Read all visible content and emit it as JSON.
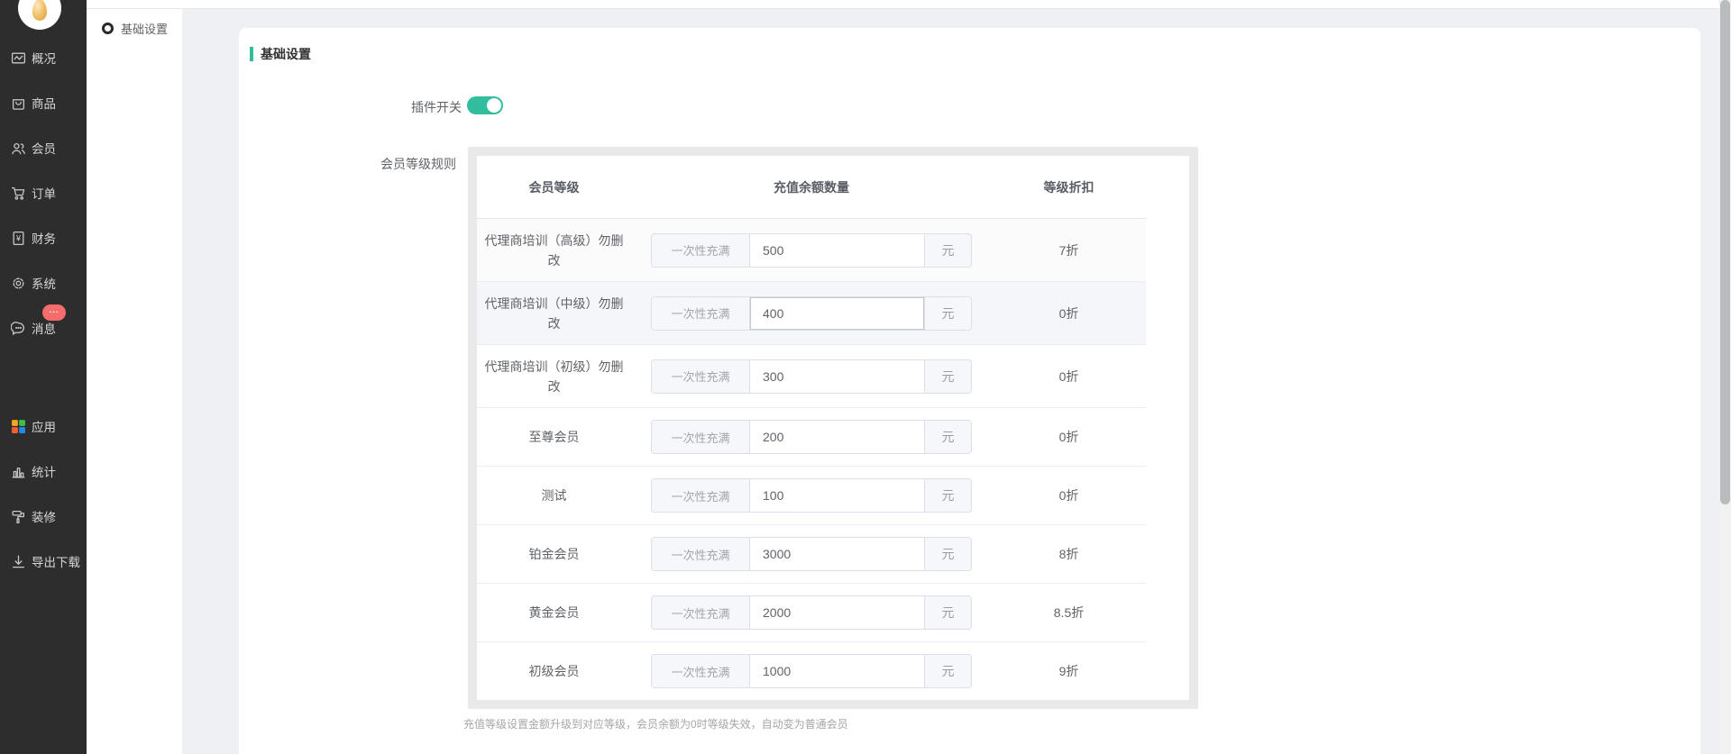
{
  "accent_color": "#30be9e",
  "sidebar": {
    "items": [
      {
        "label": "概况",
        "icon": "overview-icon"
      },
      {
        "label": "商品",
        "icon": "goods-icon"
      },
      {
        "label": "会员",
        "icon": "members-icon"
      },
      {
        "label": "订单",
        "icon": "orders-icon"
      },
      {
        "label": "财务",
        "icon": "finance-icon"
      },
      {
        "label": "系统",
        "icon": "system-icon"
      },
      {
        "label": "消息",
        "icon": "messages-icon",
        "badge": "..."
      }
    ],
    "bottom_items": [
      {
        "label": "应用",
        "icon": "apps-icon"
      },
      {
        "label": "统计",
        "icon": "stats-icon"
      },
      {
        "label": "装修",
        "icon": "decorate-icon"
      },
      {
        "label": "导出下载",
        "icon": "export-icon"
      }
    ]
  },
  "subsidebar": {
    "items": [
      {
        "label": "基础设置"
      }
    ]
  },
  "main": {
    "section_title": "基础设置",
    "plugin_switch": {
      "label": "插件开关",
      "state": "on"
    },
    "rules": {
      "label": "会员等级规则",
      "note": "充值等级设置金额升级到对应等级，会员余额为0时等级失效，自动变为普通会员",
      "table": {
        "headers": [
          "会员等级",
          "充值余额数量",
          "等级折扣"
        ],
        "input_prepend": "一次性充满",
        "input_append": "元",
        "rows": [
          {
            "level": "代理商培训（高级）勿删改",
            "amount": "500",
            "discount": "7折",
            "state": "subtle",
            "focused": false
          },
          {
            "level": "代理商培训（中级）勿删改",
            "amount": "400",
            "discount": "0折",
            "state": "hover",
            "focused": true
          },
          {
            "level": "代理商培训（初级）勿删改",
            "amount": "300",
            "discount": "0折",
            "state": "",
            "focused": false
          },
          {
            "level": "至尊会员",
            "amount": "200",
            "discount": "0折",
            "state": "",
            "focused": false
          },
          {
            "level": "测试",
            "amount": "100",
            "discount": "0折",
            "state": "",
            "focused": false
          },
          {
            "level": "铂金会员",
            "amount": "3000",
            "discount": "8折",
            "state": "",
            "focused": false
          },
          {
            "level": "黄金会员",
            "amount": "2000",
            "discount": "8.5折",
            "state": "",
            "focused": false
          },
          {
            "level": "初级会员",
            "amount": "1000",
            "discount": "9折",
            "state": "",
            "focused": false
          }
        ]
      }
    }
  }
}
